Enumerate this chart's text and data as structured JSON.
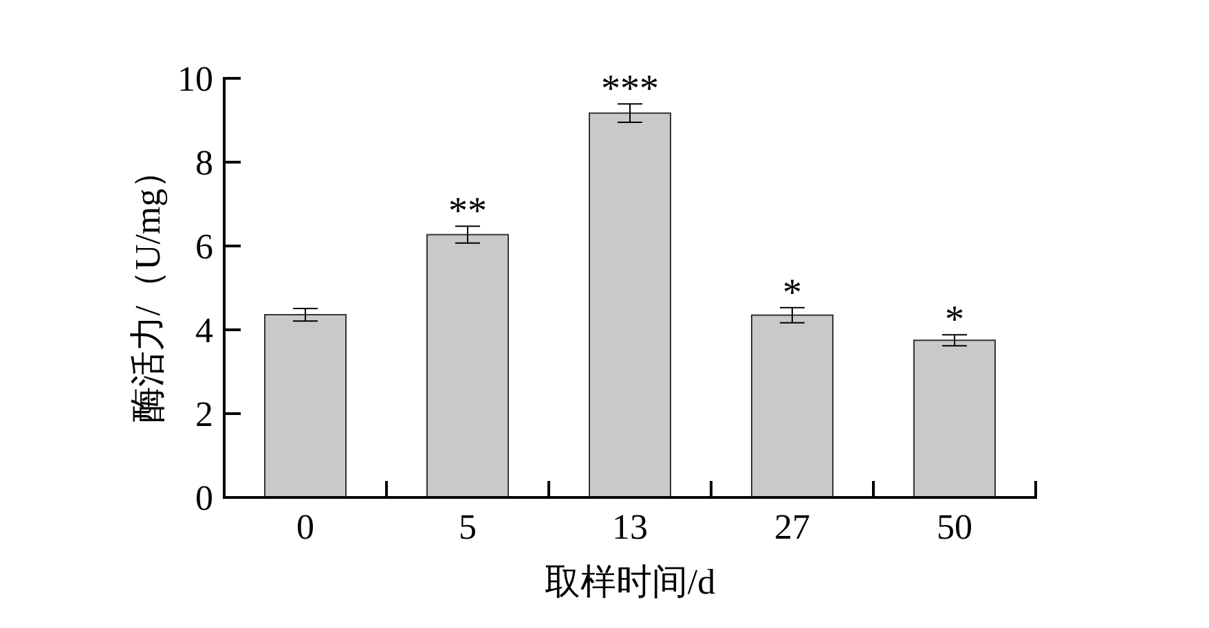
{
  "chart_data": {
    "type": "bar",
    "xlabel": "取样时间/d",
    "ylabel": "酶活力/（U/mg）",
    "categories": [
      "0",
      "5",
      "13",
      "27",
      "50"
    ],
    "series": [
      {
        "color": "#c8c9cb",
        "values": [
          4.36,
          6.27,
          9.17,
          4.35,
          3.75
        ],
        "errors": [
          0.15,
          0.2,
          0.22,
          0.18,
          0.13
        ]
      }
    ],
    "ylim": [
      0,
      10
    ],
    "yticks": [
      0,
      2,
      4,
      6,
      8,
      10
    ],
    "grid": false,
    "annotations": [
      {
        "text": "**",
        "x": "5",
        "y": 6.47
      },
      {
        "text": "***",
        "x": "13",
        "y": 9.39
      },
      {
        "text": "*",
        "x": "27",
        "y": 4.53
      },
      {
        "text": "*",
        "x": "50",
        "y": 3.88
      }
    ]
  }
}
